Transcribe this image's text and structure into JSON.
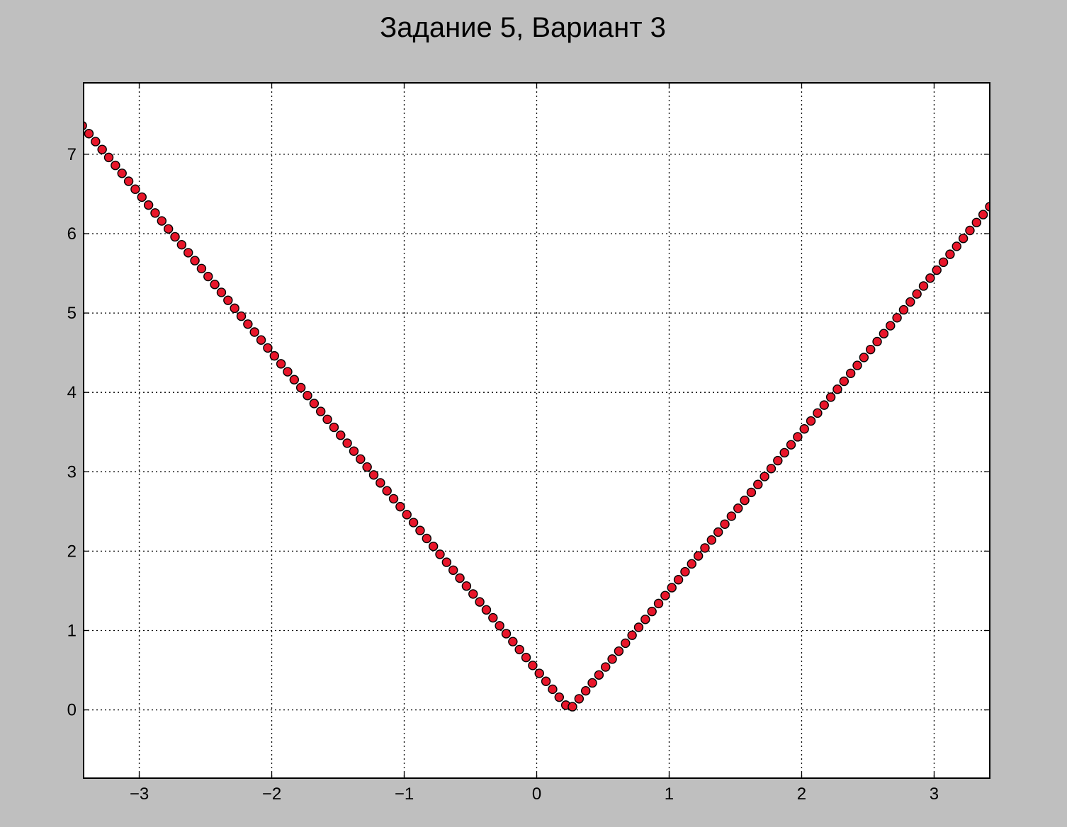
{
  "chart_data": {
    "type": "scatter",
    "title": "Задание 5, Вариант 3",
    "xlabel": "",
    "ylabel": "",
    "xlim": [
      -3.42,
      3.42
    ],
    "ylim": [
      -0.86,
      7.9
    ],
    "xticks": [
      -3,
      -2,
      -1,
      0,
      1,
      2,
      3
    ],
    "yticks": [
      0,
      1,
      2,
      3,
      4,
      5,
      6,
      7
    ],
    "xtick_labels": [
      "−3",
      "−2",
      "−1",
      "0",
      "1",
      "2",
      "3"
    ],
    "ytick_labels": [
      "0",
      "1",
      "2",
      "3",
      "4",
      "5",
      "6",
      "7"
    ],
    "grid": true,
    "legend": "none",
    "series": [
      {
        "marker": "circle",
        "color": "#e8162a",
        "edge_color": "#000000",
        "x": [
          -3.43,
          -3.38,
          -3.33,
          -3.28,
          -3.23,
          -3.18,
          -3.13,
          -3.08,
          -3.03,
          -2.98,
          -2.93,
          -2.88,
          -2.83,
          -2.78,
          -2.73,
          -2.68,
          -2.63,
          -2.58,
          -2.53,
          -2.48,
          -2.43,
          -2.38,
          -2.33,
          -2.28,
          -2.23,
          -2.18,
          -2.13,
          -2.08,
          -2.03,
          -1.98,
          -1.93,
          -1.88,
          -1.83,
          -1.78,
          -1.73,
          -1.68,
          -1.63,
          -1.58,
          -1.53,
          -1.48,
          -1.43,
          -1.38,
          -1.33,
          -1.28,
          -1.23,
          -1.18,
          -1.13,
          -1.08,
          -1.03,
          -0.98,
          -0.93,
          -0.88,
          -0.83,
          -0.78,
          -0.73,
          -0.68,
          -0.63,
          -0.58,
          -0.53,
          -0.48,
          -0.43,
          -0.38,
          -0.33,
          -0.28,
          -0.23,
          -0.18,
          -0.13,
          -0.08,
          -0.03,
          0.02,
          0.07,
          0.12,
          0.17,
          0.22,
          0.27,
          0.32,
          0.37,
          0.42,
          0.47,
          0.52,
          0.57,
          0.62,
          0.67,
          0.72,
          0.77,
          0.82,
          0.87,
          0.92,
          0.97,
          1.02,
          1.07,
          1.12,
          1.17,
          1.22,
          1.27,
          1.32,
          1.37,
          1.42,
          1.47,
          1.52,
          1.57,
          1.62,
          1.67,
          1.72,
          1.77,
          1.82,
          1.87,
          1.92,
          1.97,
          2.02,
          2.07,
          2.12,
          2.17,
          2.22,
          2.27,
          2.32,
          2.37,
          2.42,
          2.47,
          2.52,
          2.57,
          2.62,
          2.67,
          2.72,
          2.77,
          2.82,
          2.87,
          2.92,
          2.97,
          3.02,
          3.07,
          3.12,
          3.17,
          3.22,
          3.27,
          3.32,
          3.37,
          3.42
        ],
        "y": [
          7.36,
          7.26,
          7.16,
          7.06,
          6.96,
          6.86,
          6.76,
          6.66,
          6.56,
          6.46,
          6.36,
          6.26,
          6.16,
          6.06,
          5.96,
          5.86,
          5.76,
          5.66,
          5.56,
          5.46,
          5.36,
          5.26,
          5.16,
          5.06,
          4.96,
          4.86,
          4.76,
          4.66,
          4.56,
          4.46,
          4.36,
          4.26,
          4.16,
          4.06,
          3.96,
          3.86,
          3.76,
          3.66,
          3.56,
          3.46,
          3.36,
          3.26,
          3.16,
          3.06,
          2.96,
          2.86,
          2.76,
          2.66,
          2.56,
          2.46,
          2.36,
          2.26,
          2.16,
          2.06,
          1.96,
          1.86,
          1.76,
          1.66,
          1.56,
          1.46,
          1.36,
          1.26,
          1.16,
          1.06,
          0.96,
          0.86,
          0.76,
          0.66,
          0.56,
          0.46,
          0.36,
          0.26,
          0.16,
          0.06,
          0.04,
          0.14,
          0.24,
          0.34,
          0.44,
          0.54,
          0.64,
          0.74,
          0.84,
          0.94,
          1.04,
          1.14,
          1.24,
          1.34,
          1.44,
          1.54,
          1.64,
          1.74,
          1.84,
          1.94,
          2.04,
          2.14,
          2.24,
          2.34,
          2.44,
          2.54,
          2.64,
          2.74,
          2.84,
          2.94,
          3.04,
          3.14,
          3.24,
          3.34,
          3.44,
          3.54,
          3.64,
          3.74,
          3.84,
          3.94,
          4.04,
          4.14,
          4.24,
          4.34,
          4.44,
          4.54,
          4.64,
          4.74,
          4.84,
          4.94,
          5.04,
          5.14,
          5.24,
          5.34,
          5.44,
          5.54,
          5.64,
          5.74,
          5.84,
          5.94,
          6.04,
          6.14,
          6.24,
          6.34
        ]
      }
    ]
  }
}
